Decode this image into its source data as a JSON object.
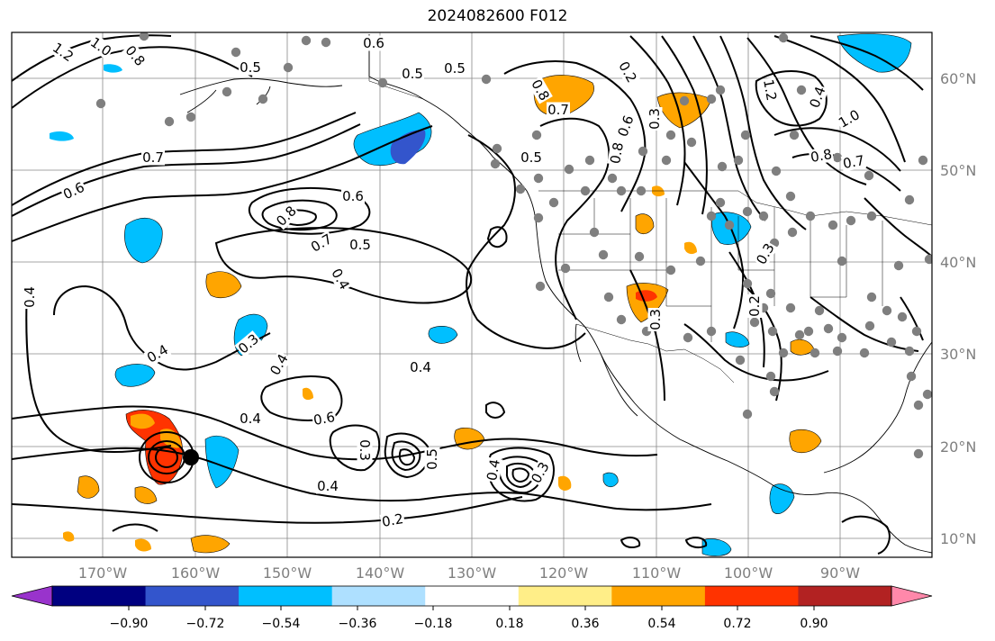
{
  "title": "2024082600 F012",
  "latitudes": [
    {
      "label": "60°N"
    },
    {
      "label": "50°N"
    },
    {
      "label": "40°N"
    },
    {
      "label": "30°N"
    },
    {
      "label": "20°N"
    },
    {
      "label": "10°N"
    }
  ],
  "longitudes": [
    {
      "label": "170°W"
    },
    {
      "label": "160°W"
    },
    {
      "label": "150°W"
    },
    {
      "label": "140°W"
    },
    {
      "label": "130°W"
    },
    {
      "label": "120°W"
    },
    {
      "label": "110°W"
    },
    {
      "label": "100°W"
    },
    {
      "label": "90°W"
    }
  ],
  "colorbar": {
    "colors": [
      "#9933cc",
      "#000080",
      "#3355cc",
      "#00bfff",
      "#aee0ff",
      "#ffffff",
      "#ffee88",
      "#ffa500",
      "#ff3300",
      "#b22222",
      "#ff88aa"
    ],
    "ticks": [
      "−0.90",
      "−0.72",
      "−0.54",
      "−0.36",
      "−0.18",
      "0.18",
      "0.36",
      "0.54",
      "0.72",
      "0.90"
    ]
  },
  "contour_labels": [
    {
      "text": "1.2"
    },
    {
      "text": "1.0"
    },
    {
      "text": "0.8"
    },
    {
      "text": "0.5"
    },
    {
      "text": "0.6"
    },
    {
      "text": "0.5"
    },
    {
      "text": "0.5"
    },
    {
      "text": "0.7"
    },
    {
      "text": "0.6"
    },
    {
      "text": "0.6"
    },
    {
      "text": "0.8"
    },
    {
      "text": "0.7"
    },
    {
      "text": "0.5"
    },
    {
      "text": "0.4"
    },
    {
      "text": "0.4"
    },
    {
      "text": "0.4"
    },
    {
      "text": "0.3"
    },
    {
      "text": "0.4"
    },
    {
      "text": "0.4"
    },
    {
      "text": "0.6"
    },
    {
      "text": "0.4"
    },
    {
      "text": "0.3"
    },
    {
      "text": "0.4"
    },
    {
      "text": "0.5"
    },
    {
      "text": "0.4"
    },
    {
      "text": "0.3"
    },
    {
      "text": "0.2"
    },
    {
      "text": "0.8"
    },
    {
      "text": "0.7"
    },
    {
      "text": "0.5"
    },
    {
      "text": "0.3"
    },
    {
      "text": "0.2"
    },
    {
      "text": "0.6"
    },
    {
      "text": "0.8"
    },
    {
      "text": "0.3"
    },
    {
      "text": "1.2"
    },
    {
      "text": "1.0"
    },
    {
      "text": "0.8"
    },
    {
      "text": "0.7"
    },
    {
      "text": "0.4"
    },
    {
      "text": "0.2"
    },
    {
      "text": "0.3"
    }
  ]
}
